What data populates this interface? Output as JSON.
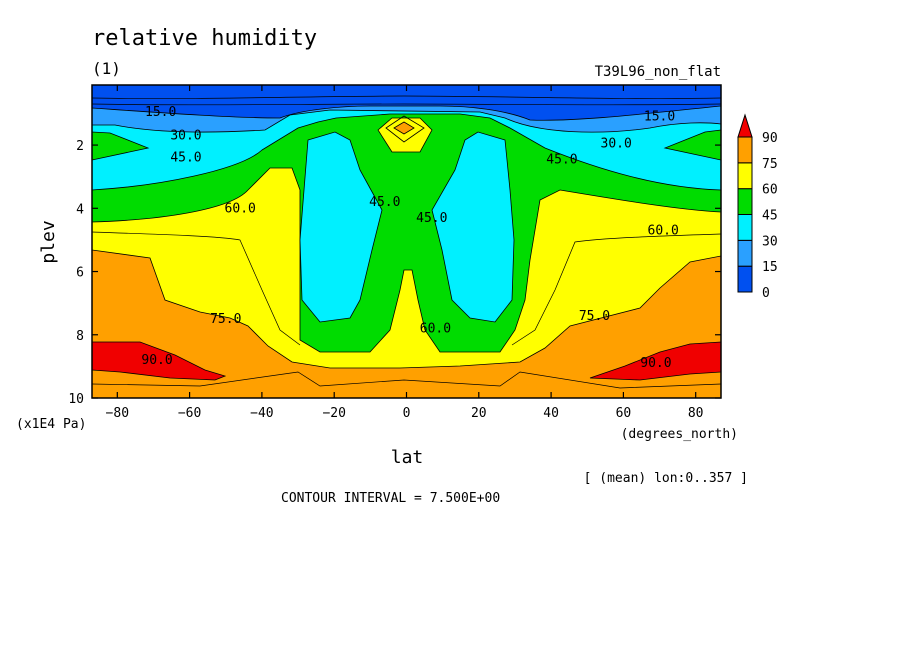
{
  "chart_data": {
    "type": "heatmap",
    "title": "relative humidity",
    "subtitle": "(1)",
    "run_label": "T39L96_non_flat",
    "xlabel": "lat",
    "xunit": "(degrees_north)",
    "ylabel": "plev",
    "yunit": "(x1E4 Pa)",
    "xlim": [
      -87,
      87
    ],
    "ylim": [
      10,
      0.1
    ],
    "y_inverted": true,
    "grid": false,
    "x_ticks": [
      -80,
      -60,
      -40,
      -20,
      0,
      20,
      40,
      60,
      80
    ],
    "x_tick_labels": [
      "-80",
      "-60",
      "-40",
      "-20",
      "0",
      "20",
      "40",
      "60",
      "80"
    ],
    "y_ticks": [
      2,
      4,
      6,
      8,
      10
    ],
    "y_tick_labels": [
      "2",
      "4",
      "6",
      "8",
      "10"
    ],
    "note": "[ (mean) lon:0..357 ]",
    "contour_interval_text": "CONTOUR INTERVAL = 7.500E+00",
    "contour_interval": 7.5,
    "colorbar": {
      "levels": [
        0,
        15,
        30,
        45,
        60,
        75,
        90
      ],
      "labels": [
        "0",
        "15",
        "30",
        "45",
        "60",
        "75",
        "90"
      ],
      "colors": [
        "#0050f0",
        "#2aa0ff",
        "#00f0ff",
        "#00dc00",
        "#ffff00",
        "#ffa000",
        "#f00000"
      ],
      "extend": "max"
    },
    "contour_labels": [
      {
        "text": "15.0",
        "lat": -68,
        "plev": 0.95
      },
      {
        "text": "15.0",
        "lat": 70,
        "plev": 1.1
      },
      {
        "text": "30.0",
        "lat": -61,
        "plev": 1.7
      },
      {
        "text": "30.0",
        "lat": 58,
        "plev": 1.95
      },
      {
        "text": "45.0",
        "lat": -61,
        "plev": 2.4
      },
      {
        "text": "45.0",
        "lat": 43,
        "plev": 2.45
      },
      {
        "text": "45.0",
        "lat": -6,
        "plev": 3.8
      },
      {
        "text": "45.0",
        "lat": 7,
        "plev": 4.3
      },
      {
        "text": "60.0",
        "lat": -46,
        "plev": 4.0
      },
      {
        "text": "60.0",
        "lat": 71,
        "plev": 4.7
      },
      {
        "text": "60.0",
        "lat": 8,
        "plev": 7.8
      },
      {
        "text": "75.0",
        "lat": -50,
        "plev": 7.5
      },
      {
        "text": "75.0",
        "lat": 52,
        "plev": 7.4
      },
      {
        "text": "90.0",
        "lat": -69,
        "plev": 8.8
      },
      {
        "text": "90.0",
        "lat": 69,
        "plev": 8.9
      }
    ]
  }
}
